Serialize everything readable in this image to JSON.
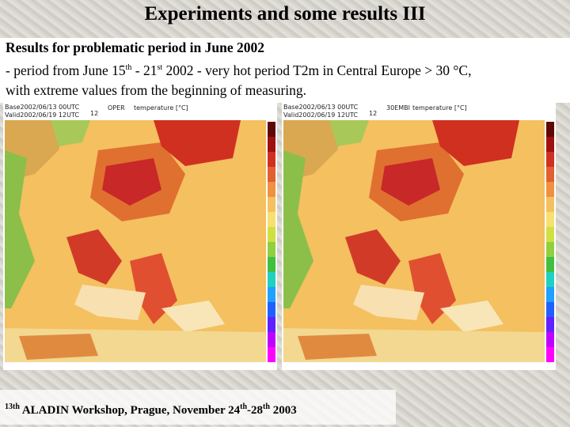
{
  "header": {
    "title": "Experiments and some results III"
  },
  "body": {
    "heading": "Results for problematic period in June 2002",
    "line2": [
      "- period from June 15",
      "th",
      " - 21",
      "st",
      " 2002 - very hot period T2m in Central Europe > 30 °C,"
    ],
    "line3": "with extreme values from the beginning of measuring."
  },
  "maps": [
    {
      "base": "Base2002/06/13 00UTC",
      "valid": "Valid2002/06/19 12UTC",
      "model": "OPER",
      "field": "temperature [°C]",
      "step": "12"
    },
    {
      "base": "Base2002/06/13 00UTC",
      "valid": "Valid2002/06/19 12UTC",
      "model": "30EMBI",
      "field": "temperature [°C]",
      "step": "12"
    }
  ],
  "footer": [
    "13",
    "th",
    " ALADIN Workshop, Prague, November 24",
    "th",
    "-28",
    "th",
    " 2003"
  ]
}
